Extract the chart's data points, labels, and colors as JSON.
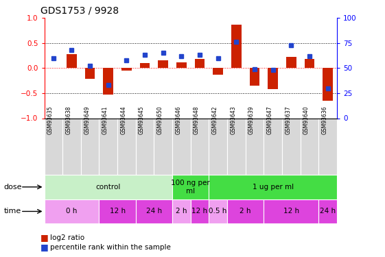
{
  "title": "GDS1753 / 9928",
  "samples": [
    "GSM93635",
    "GSM93638",
    "GSM93649",
    "GSM93641",
    "GSM93644",
    "GSM93645",
    "GSM93650",
    "GSM93646",
    "GSM93648",
    "GSM93642",
    "GSM93643",
    "GSM93639",
    "GSM93647",
    "GSM93637",
    "GSM93640",
    "GSM93636"
  ],
  "log2_ratio": [
    0.0,
    0.28,
    -0.22,
    -0.53,
    -0.05,
    0.1,
    0.15,
    0.12,
    0.18,
    -0.13,
    0.87,
    -0.35,
    -0.42,
    0.22,
    0.18,
    -0.65
  ],
  "percentile": [
    60,
    68,
    52,
    33,
    58,
    63,
    65,
    62,
    63,
    60,
    76,
    49,
    48,
    73,
    62,
    30
  ],
  "dose_groups": [
    {
      "label": "control",
      "start": 0,
      "end": 7,
      "color": "#c8f0c8"
    },
    {
      "label": "100 ng per\nml",
      "start": 7,
      "end": 9,
      "color": "#44dd44"
    },
    {
      "label": "1 ug per ml",
      "start": 9,
      "end": 16,
      "color": "#44dd44"
    }
  ],
  "time_groups": [
    {
      "label": "0 h",
      "start": 0,
      "end": 3,
      "color": "#f0a0f0"
    },
    {
      "label": "12 h",
      "start": 3,
      "end": 5,
      "color": "#dd44dd"
    },
    {
      "label": "24 h",
      "start": 5,
      "end": 7,
      "color": "#dd44dd"
    },
    {
      "label": "2 h",
      "start": 7,
      "end": 8,
      "color": "#f0a0f0"
    },
    {
      "label": "12 h",
      "start": 8,
      "end": 9,
      "color": "#dd44dd"
    },
    {
      "label": "0.5 h",
      "start": 9,
      "end": 10,
      "color": "#f0a0f0"
    },
    {
      "label": "2 h",
      "start": 10,
      "end": 12,
      "color": "#dd44dd"
    },
    {
      "label": "12 h",
      "start": 12,
      "end": 15,
      "color": "#dd44dd"
    },
    {
      "label": "24 h",
      "start": 15,
      "end": 16,
      "color": "#dd44dd"
    }
  ],
  "bar_color": "#cc2200",
  "dot_color": "#2244cc",
  "ylim_left": [
    -1,
    1
  ],
  "ylim_right": [
    0,
    100
  ],
  "yticks_left": [
    -1,
    -0.5,
    0,
    0.5,
    1
  ],
  "yticks_right": [
    0,
    25,
    50,
    75,
    100
  ],
  "hlines": [
    -0.5,
    0.5
  ],
  "hline0_color": "#ff0000",
  "grid_color": "black",
  "sample_bg_color": "#d8d8d8",
  "sample_edge_color": "white"
}
